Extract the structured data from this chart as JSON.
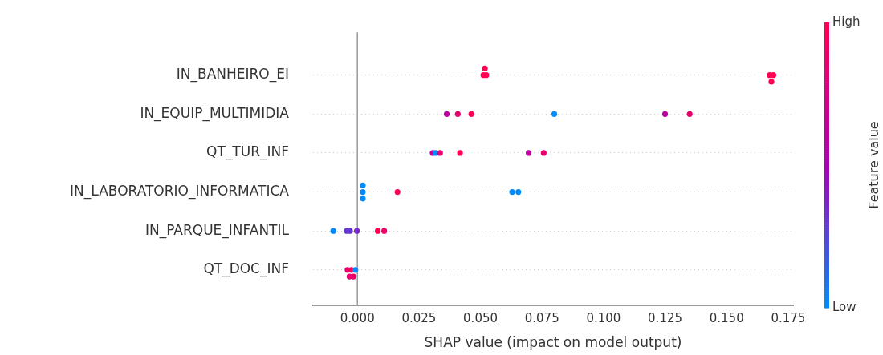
{
  "chart_data": {
    "type": "scatter",
    "orientation": "horizontal",
    "xlabel": "SHAP value (impact on model output)",
    "clabel": "Feature value",
    "categories": [
      "IN_BANHEIRO_EI",
      "IN_EQUIP_MULTIMIDIA",
      "QT_TUR_INF",
      "IN_LABORATORIO_INFORMATICA",
      "IN_PARQUE_INFANTIL",
      "QT_DOC_INF"
    ],
    "series": [
      {
        "x": [
          "IN_BANHEIRO_EI",
          "IN_BANHEIRO_EI",
          "IN_BANHEIRO_EI",
          "IN_BANHEIRO_EI",
          "IN_BANHEIRO_EI",
          "IN_BANHEIRO_EI",
          "IN_EQUIP_MULTIMIDIA",
          "IN_EQUIP_MULTIMIDIA",
          "IN_EQUIP_MULTIMIDIA",
          "IN_EQUIP_MULTIMIDIA",
          "IN_EQUIP_MULTIMIDIA",
          "IN_EQUIP_MULTIMIDIA",
          "QT_TUR_INF",
          "QT_TUR_INF",
          "QT_TUR_INF",
          "QT_TUR_INF",
          "QT_TUR_INF",
          "QT_TUR_INF",
          "IN_LABORATORIO_INFORMATICA",
          "IN_LABORATORIO_INFORMATICA",
          "IN_LABORATORIO_INFORMATICA",
          "IN_LABORATORIO_INFORMATICA",
          "IN_LABORATORIO_INFORMATICA",
          "IN_LABORATORIO_INFORMATICA",
          "IN_PARQUE_INFANTIL",
          "IN_PARQUE_INFANTIL",
          "IN_PARQUE_INFANTIL",
          "IN_PARQUE_INFANTIL",
          "IN_PARQUE_INFANTIL",
          "IN_PARQUE_INFANTIL",
          "QT_DOC_INF",
          "QT_DOC_INF",
          "QT_DOC_INF",
          "QT_DOC_INF",
          "QT_DOC_INF"
        ],
        "values": [
          0.0512,
          0.0524,
          0.0518,
          0.1675,
          0.169,
          0.1682,
          0.0363,
          0.0408,
          0.0463,
          0.08,
          0.125,
          0.135,
          0.0306,
          0.0318,
          0.0336,
          0.0417,
          0.0696,
          0.0757,
          0.0022,
          0.0022,
          0.0022,
          0.0163,
          0.0629,
          0.0654,
          -0.0098,
          -0.0043,
          -0.003,
          -0.0002,
          0.0083,
          0.0109,
          -0.004,
          -0.0032,
          -0.0024,
          -0.0016,
          -0.0008
        ],
        "cvalues": [
          1,
          1,
          1,
          1,
          1,
          1,
          0.6,
          0.85,
          1,
          0,
          0.6,
          0.85,
          0.6,
          0,
          0.85,
          1,
          0.6,
          0.85,
          0,
          0,
          0,
          1,
          0,
          0,
          0,
          0.3,
          0.3,
          0.35,
          1,
          0.9,
          0.85,
          0.85,
          1,
          0.85,
          0
        ]
      }
    ],
    "xlim": [
      -0.018,
      0.177
    ],
    "xticks": [
      {
        "value": 0,
        "label": "0.000"
      },
      {
        "value": 0.025,
        "label": "0.025"
      },
      {
        "value": 0.05,
        "label": "0.050"
      },
      {
        "value": 0.075,
        "label": "0.075"
      },
      {
        "value": 0.1,
        "label": "0.100"
      },
      {
        "value": 0.125,
        "label": "0.125"
      },
      {
        "value": 0.15,
        "label": "0.150"
      },
      {
        "value": 0.175,
        "label": "0.175"
      }
    ],
    "clim": [
      0,
      1
    ],
    "cticks": [
      {
        "value": 0,
        "label": "Low"
      },
      {
        "value": 1,
        "label": "High"
      }
    ],
    "ref_lines": [
      {
        "axis": "x",
        "value": 0,
        "color": "#999999"
      }
    ],
    "grid": "y",
    "marker": "circle"
  }
}
